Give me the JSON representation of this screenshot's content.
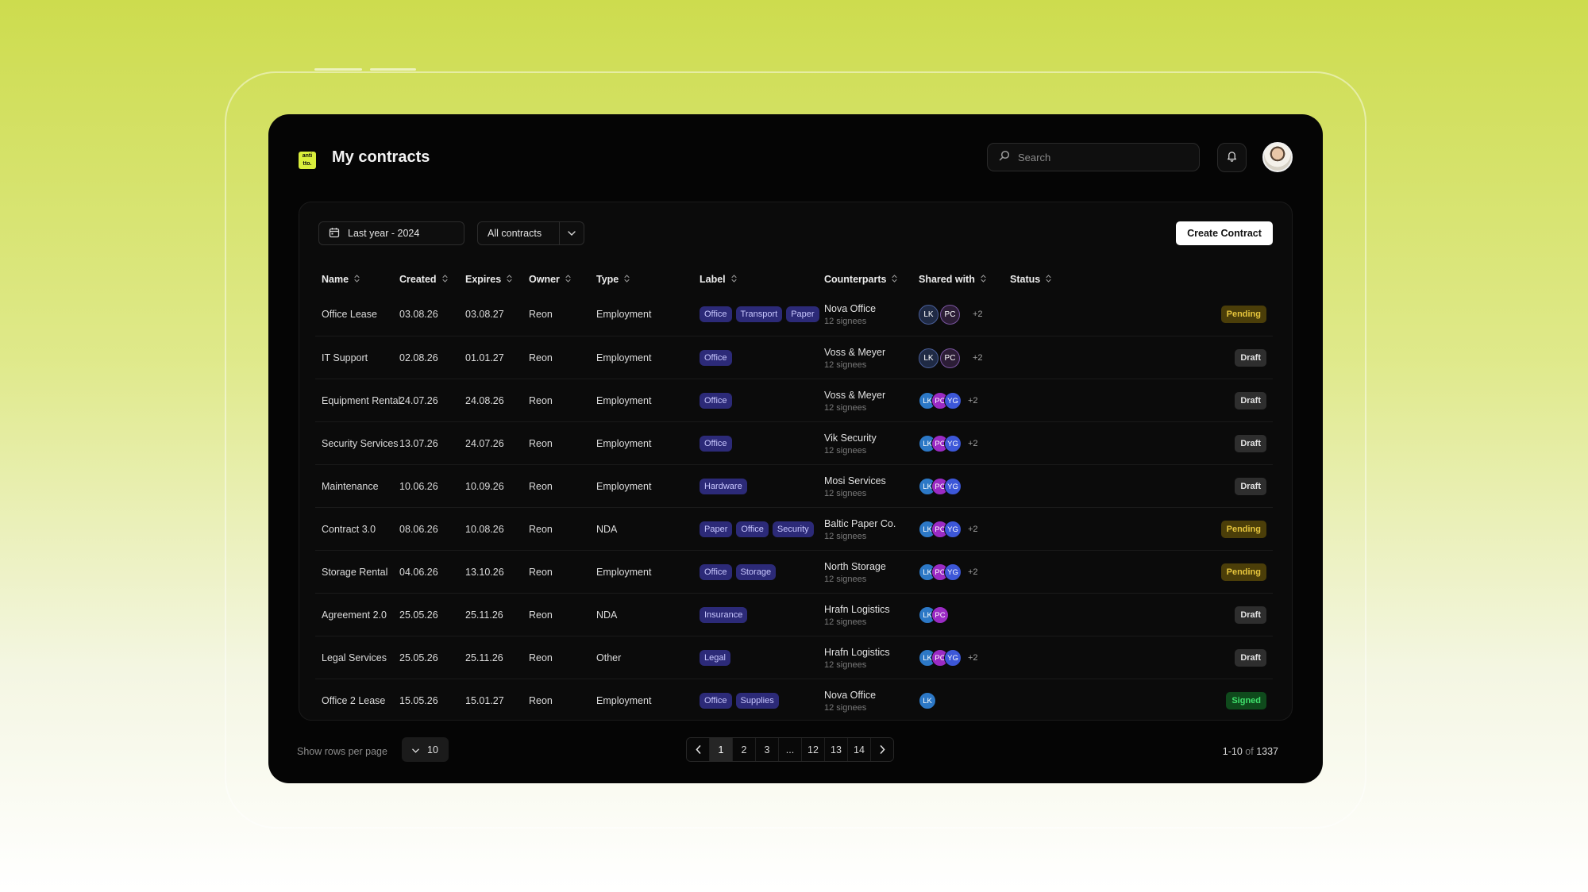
{
  "app": {
    "logo_text": "anti tto.",
    "title": "My contracts"
  },
  "header": {
    "search_placeholder": "Search"
  },
  "toolbar": {
    "date_filter": "Last year - 2024",
    "contract_filter": "All contracts",
    "create_label": "Create Contract"
  },
  "columns": [
    "Name",
    "Created",
    "Expires",
    "Owner",
    "Type",
    "Label",
    "Counterparts",
    "Shared with",
    "Status"
  ],
  "rows": [
    {
      "name": "Office Lease",
      "created": "03.08.26",
      "expires": "03.08.27",
      "owner": "Reon",
      "type": "Employment",
      "labels": [
        "Office",
        "Transport",
        "Paper"
      ],
      "counterpart": "Nova Office",
      "signees": "12 signees",
      "shared": [
        "LK",
        "PC"
      ],
      "shared_style": "outline",
      "more": "+2",
      "status": "Pending"
    },
    {
      "name": "IT Support",
      "created": "02.08.26",
      "expires": "01.01.27",
      "owner": "Reon",
      "type": "Employment",
      "labels": [
        "Office"
      ],
      "counterpart": "Voss & Meyer",
      "signees": "12 signees",
      "shared": [
        "LK",
        "PC"
      ],
      "shared_style": "outline",
      "more": "+2",
      "status": "Draft"
    },
    {
      "name": "Equipment Rental",
      "created": "24.07.26",
      "expires": "24.08.26",
      "owner": "Reon",
      "type": "Employment",
      "labels": [
        "Office"
      ],
      "counterpart": "Voss & Meyer",
      "signees": "12 signees",
      "shared": [
        "LK",
        "PC",
        "YG"
      ],
      "shared_style": "solid",
      "more": "+2",
      "status": "Draft"
    },
    {
      "name": "Security Services",
      "created": "13.07.26",
      "expires": "24.07.26",
      "owner": "Reon",
      "type": "Employment",
      "labels": [
        "Office"
      ],
      "counterpart": "Vik Security",
      "signees": "12 signees",
      "shared": [
        "LK",
        "PC",
        "YG"
      ],
      "shared_style": "solid",
      "more": "+2",
      "status": "Draft"
    },
    {
      "name": "Maintenance",
      "created": "10.06.26",
      "expires": "10.09.26",
      "owner": "Reon",
      "type": "Employment",
      "labels": [
        "Hardware"
      ],
      "counterpart": "Mosi Services",
      "signees": "12 signees",
      "shared": [
        "LK",
        "PC",
        "YG"
      ],
      "shared_style": "solid",
      "more": "",
      "status": "Draft"
    },
    {
      "name": "Contract 3.0",
      "created": "08.06.26",
      "expires": "10.08.26",
      "owner": "Reon",
      "type": "NDA",
      "labels": [
        "Paper",
        "Office",
        "Security"
      ],
      "counterpart": "Baltic Paper Co.",
      "signees": "12 signees",
      "shared": [
        "LK",
        "PC",
        "YG"
      ],
      "shared_style": "solid",
      "more": "+2",
      "status": "Pending"
    },
    {
      "name": "Storage Rental",
      "created": "04.06.26",
      "expires": "13.10.26",
      "owner": "Reon",
      "type": "Employment",
      "labels": [
        "Office",
        "Storage"
      ],
      "counterpart": "North Storage",
      "signees": "12 signees",
      "shared": [
        "LK",
        "PC",
        "YG"
      ],
      "shared_style": "solid",
      "more": "+2",
      "status": "Pending"
    },
    {
      "name": "Agreement 2.0",
      "created": "25.05.26",
      "expires": "25.11.26",
      "owner": "Reon",
      "type": "NDA",
      "labels": [
        "Insurance"
      ],
      "counterpart": "Hrafn Logistics",
      "signees": "12 signees",
      "shared": [
        "LK",
        "PC"
      ],
      "shared_style": "solid",
      "more": "",
      "status": "Draft"
    },
    {
      "name": "Legal Services",
      "created": "25.05.26",
      "expires": "25.11.26",
      "owner": "Reon",
      "type": "Other",
      "labels": [
        "Legal"
      ],
      "counterpart": "Hrafn Logistics",
      "signees": "12 signees",
      "shared": [
        "LK",
        "PC",
        "YG"
      ],
      "shared_style": "solid",
      "more": "+2",
      "status": "Draft"
    },
    {
      "name": "Office 2 Lease",
      "created": "15.05.26",
      "expires": "15.01.27",
      "owner": "Reon",
      "type": "Employment",
      "labels": [
        "Office",
        "Supplies"
      ],
      "counterpart": "Nova Office",
      "signees": "12 signees",
      "shared": [
        "LK"
      ],
      "shared_style": "solid",
      "more": "",
      "status": "Signed"
    }
  ],
  "footer": {
    "rows_label": "Show rows per page",
    "rows_value": "10",
    "pages": [
      "1",
      "2",
      "3",
      "...",
      "12",
      "13",
      "14"
    ],
    "active_page": "1",
    "range": "1-10",
    "of_label": "of",
    "total": "1337"
  },
  "colors": {
    "accent": "#d9ee3c",
    "pending": "#e5c43c",
    "signed": "#3fe06b",
    "tag_bg": "#2c2a78"
  }
}
